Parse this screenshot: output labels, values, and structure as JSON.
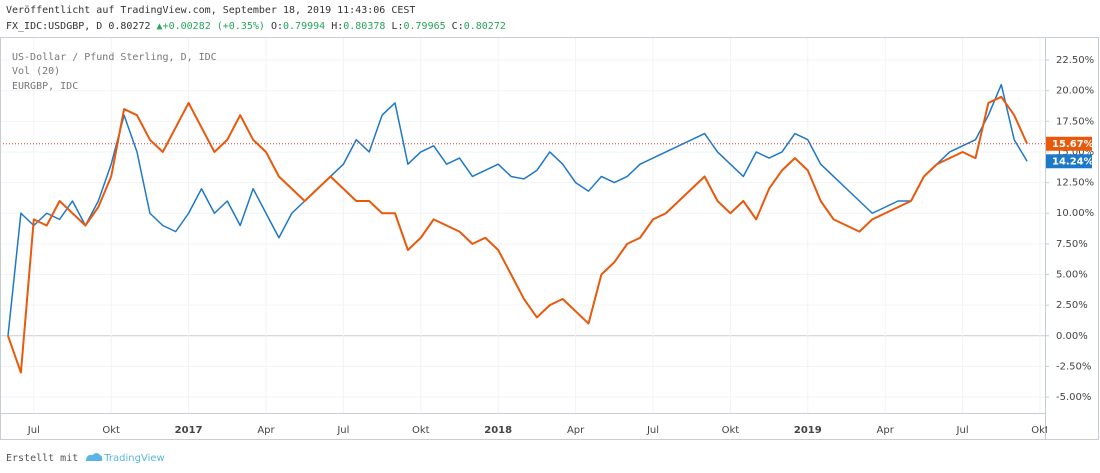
{
  "header": {
    "published": "Veröffentlicht auf TradingView.com, September 18, 2019 11:43:06 CEST",
    "symbol": "FX_IDC:USDGBP, D",
    "last": "0.80272",
    "change": "+0.00282 (+0.35%)",
    "ohlc": [
      {
        "label": "O:",
        "value": "0.79994"
      },
      {
        "label": "H:",
        "value": "0.80378"
      },
      {
        "label": "L:",
        "value": "0.79965"
      },
      {
        "label": "C:",
        "value": "0.80272"
      }
    ]
  },
  "chart_data": {
    "type": "line",
    "indicator": "Vol (20)",
    "grid": true,
    "categories": [
      null,
      null,
      "Jul",
      null,
      null,
      null,
      null,
      null,
      "Okt",
      null,
      null,
      null,
      null,
      null,
      "2017",
      null,
      null,
      null,
      null,
      null,
      "Apr",
      null,
      null,
      null,
      null,
      null,
      "Jul",
      null,
      null,
      null,
      null,
      null,
      "Okt",
      null,
      null,
      null,
      null,
      null,
      "2018",
      null,
      null,
      null,
      null,
      null,
      "Apr",
      null,
      null,
      null,
      null,
      null,
      "Jul",
      null,
      null,
      null,
      null,
      null,
      "Okt",
      null,
      null,
      null,
      null,
      null,
      "2019",
      null,
      null,
      null,
      null,
      null,
      "Apr",
      null,
      null,
      null,
      null,
      null,
      "Jul",
      null,
      null,
      null,
      null,
      null,
      "Okt"
    ],
    "series": [
      {
        "name": "US-Dollar / Pfund Sterling, D, IDC",
        "color": "#1e78c8",
        "values": [
          0,
          10,
          9,
          10,
          9.5,
          11,
          9,
          11,
          14,
          18,
          15,
          10,
          9,
          8.5,
          10,
          12,
          10,
          11,
          9,
          12,
          10,
          8,
          10,
          11,
          12,
          13,
          14,
          16,
          15,
          18,
          19,
          14,
          15,
          15.5,
          14,
          14.5,
          13,
          13.5,
          14,
          13,
          12.8,
          13.5,
          15,
          14,
          12.5,
          11.8,
          13,
          12.5,
          13,
          14,
          14.5,
          15,
          15.5,
          16,
          16.5,
          15,
          14,
          13,
          15,
          14.5,
          15,
          16.5,
          16,
          14,
          13,
          12,
          11,
          10,
          10.5,
          11,
          11,
          13,
          14,
          15,
          15.5,
          16,
          18,
          20.5,
          16,
          14.24,
          null
        ],
        "value_labels": [
          null,
          null,
          null,
          null,
          null,
          null,
          null,
          null,
          null,
          null,
          null,
          null,
          null,
          null,
          null,
          null,
          null,
          null,
          null,
          null,
          null,
          null,
          null,
          null,
          null,
          null,
          null,
          null,
          null,
          null,
          null,
          null,
          null,
          null,
          null,
          null,
          null,
          null,
          null,
          null,
          null,
          null,
          null,
          null,
          null,
          null,
          null,
          null,
          null,
          null,
          null,
          null,
          null,
          null,
          null,
          null,
          null,
          null,
          null,
          null,
          null,
          null,
          null,
          null,
          null,
          null,
          null,
          null,
          null,
          null,
          null,
          null,
          null,
          null,
          null,
          null,
          null,
          null,
          null,
          "14.24%",
          null
        ]
      },
      {
        "name": "EURGBP, IDC",
        "color": "#e8590c",
        "values": [
          0,
          -3,
          9.5,
          9,
          11,
          10,
          9,
          10.5,
          13,
          18.5,
          18,
          16,
          15,
          17,
          19,
          17,
          15,
          16,
          18,
          16,
          15,
          13,
          12,
          11,
          12,
          13,
          12,
          11,
          11,
          10,
          10,
          7,
          8,
          9.5,
          9,
          8.5,
          7.5,
          8,
          7,
          5,
          3,
          1.5,
          2.5,
          3,
          2,
          1,
          5,
          6,
          7.5,
          8,
          9.5,
          10,
          11,
          12,
          13,
          11,
          10,
          11,
          9.5,
          12,
          13.5,
          14.5,
          13.5,
          11,
          9.5,
          9,
          8.5,
          9.5,
          10,
          10.5,
          11,
          13,
          14,
          14.5,
          15,
          14.5,
          19,
          19.5,
          18,
          15.67,
          null
        ],
        "value_labels": [
          null,
          null,
          null,
          null,
          null,
          null,
          null,
          null,
          null,
          null,
          null,
          null,
          null,
          null,
          null,
          null,
          null,
          null,
          null,
          null,
          null,
          null,
          null,
          null,
          null,
          null,
          null,
          null,
          null,
          null,
          null,
          null,
          null,
          null,
          null,
          null,
          null,
          null,
          null,
          null,
          null,
          null,
          null,
          null,
          null,
          null,
          null,
          null,
          null,
          null,
          null,
          null,
          null,
          null,
          null,
          null,
          null,
          null,
          null,
          null,
          null,
          null,
          null,
          null,
          null,
          null,
          null,
          null,
          null,
          null,
          null,
          null,
          null,
          null,
          null,
          null,
          null,
          null,
          null,
          "15.67%",
          null
        ]
      }
    ],
    "ylim": [
      -6.3,
      24.3
    ],
    "yticks": [
      {
        "value": -5,
        "label": "-5.00%"
      },
      {
        "value": -2.5,
        "label": "-2.50%"
      },
      {
        "value": 0,
        "label": "0.00%"
      },
      {
        "value": 2.5,
        "label": "2.50%"
      },
      {
        "value": 5,
        "label": "5.00%"
      },
      {
        "value": 7.5,
        "label": "7.50%"
      },
      {
        "value": 10,
        "label": "10.00%"
      },
      {
        "value": 12.5,
        "label": "12.50%"
      },
      {
        "value": 15,
        "label": "15.00%"
      },
      {
        "value": 17.5,
        "label": "17.50%"
      },
      {
        "value": 20,
        "label": "20.00%"
      },
      {
        "value": 22.5,
        "label": "22.50%"
      }
    ]
  },
  "footer": {
    "made_with": "Erstellt mit",
    "brand": "TradingView"
  }
}
